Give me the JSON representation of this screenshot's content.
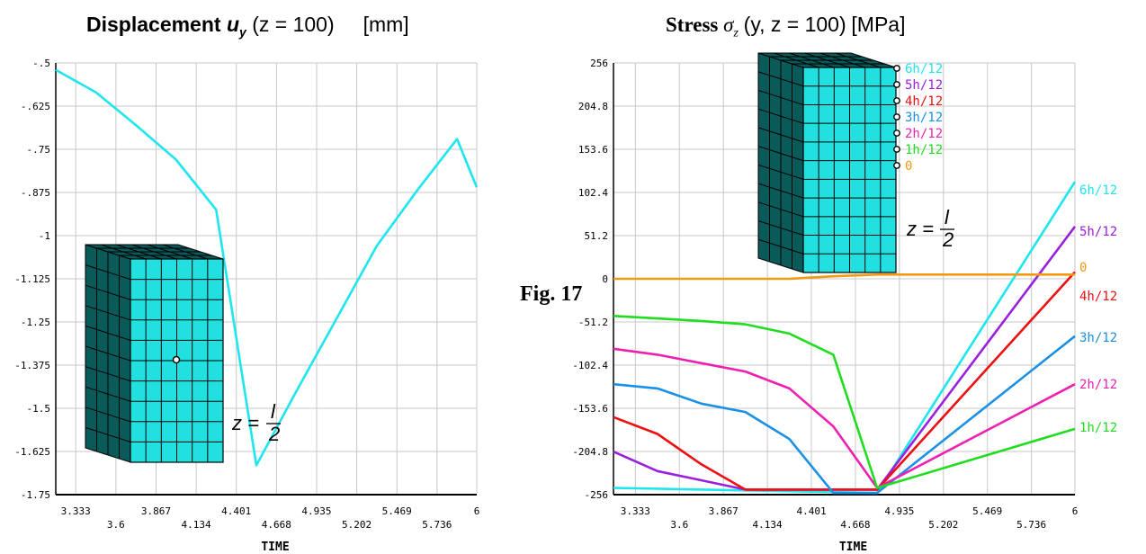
{
  "titles": {
    "left_main": "Displacement",
    "left_var": "u",
    "left_sub": "y",
    "left_rest": "(z = 100)",
    "left_unit": "[mm]",
    "right_main": "Stress",
    "right_var": "σ",
    "right_sub": "z",
    "right_rest": "(y, z = 100)",
    "right_unit": "[MPa]"
  },
  "figure_label": "Fig. 17",
  "insets": {
    "z_lhs": "z =",
    "z_num": "l",
    "z_den": "2"
  },
  "chart_data": [
    {
      "type": "line",
      "xlabel": "TIME",
      "ylabel": "",
      "xlim": [
        3.2,
        6.0
      ],
      "ylim": [
        -1.75,
        -0.5
      ],
      "x_ticks": [
        "3.333",
        "3.6",
        "3.867",
        "4.134",
        "4.401",
        "4.668",
        "4.935",
        "5.202",
        "5.469",
        "5.736",
        "6"
      ],
      "y_ticks": [
        "-.5",
        "-.625",
        "-.75",
        "-.875",
        "-1",
        "-1.125",
        "-1.25",
        "-1.375",
        "-1.5",
        "-1.625",
        "-1.75"
      ],
      "grid": true,
      "series": [
        {
          "color": "#1ee6ee",
          "x": [
            3.2,
            3.467,
            3.733,
            4.0,
            4.267,
            4.534,
            4.801,
            5.068,
            5.335,
            5.602,
            5.869,
            6.0
          ],
          "y": [
            -0.52,
            -0.585,
            -0.68,
            -0.78,
            -0.925,
            -1.665,
            -1.45,
            -1.24,
            -1.03,
            -0.87,
            -0.72,
            -0.86
          ]
        }
      ]
    },
    {
      "type": "line",
      "xlabel": "TIME",
      "ylabel": "",
      "xlim": [
        3.2,
        6.0
      ],
      "ylim": [
        -256,
        256
      ],
      "x_ticks": [
        "3.333",
        "3.6",
        "3.867",
        "4.134",
        "4.401",
        "4.668",
        "4.935",
        "5.202",
        "5.469",
        "5.736",
        "6"
      ],
      "y_ticks": [
        "256",
        "204.8",
        "153.6",
        "102.4",
        "51.2",
        "0",
        "-51.2",
        "-102.4",
        "-153.6",
        "-204.8",
        "-256"
      ],
      "grid": true,
      "legend_inset": [
        "6h/12",
        "5h/12",
        "4h/12",
        "3h/12",
        "2h/12",
        "1h/12",
        "0"
      ],
      "series": [
        {
          "name": "6h/12",
          "color": "#1ee6ee",
          "x": [
            3.2,
            4.8,
            6.0
          ],
          "y": [
            -248,
            -254,
            115
          ]
        },
        {
          "name": "5h/12",
          "color": "#9a20e0",
          "x": [
            3.2,
            3.467,
            4.0,
            4.8,
            6.0
          ],
          "y": [
            -205,
            -228,
            -250,
            -250,
            62
          ]
        },
        {
          "name": "4h/12",
          "color": "#ee1010",
          "x": [
            3.2,
            3.467,
            3.733,
            4.0,
            4.8,
            6.0
          ],
          "y": [
            -164,
            -184,
            -220,
            -250,
            -250,
            8
          ]
        },
        {
          "name": "3h/12",
          "color": "#1a90e6",
          "x": [
            3.2,
            3.467,
            3.733,
            4.0,
            4.267,
            4.534,
            4.8,
            6.0
          ],
          "y": [
            -125,
            -130,
            -148,
            -158,
            -190,
            -254,
            -254,
            -68
          ]
        },
        {
          "name": "2h/12",
          "color": "#ee20b0",
          "x": [
            3.2,
            3.467,
            3.733,
            4.0,
            4.267,
            4.534,
            4.8,
            6.0
          ],
          "y": [
            -83,
            -90,
            -100,
            -110,
            -130,
            -175,
            -248,
            -125
          ]
        },
        {
          "name": "1h/12",
          "color": "#20dd20",
          "x": [
            3.2,
            3.467,
            3.733,
            4.0,
            4.267,
            4.534,
            4.8,
            6.0
          ],
          "y": [
            -44,
            -47,
            -50,
            -54,
            -65,
            -90,
            -248,
            -178
          ]
        },
        {
          "name": "0",
          "color": "#f49a10",
          "x": [
            3.2,
            4.267,
            4.534,
            4.8,
            6.0
          ],
          "y": [
            0,
            0,
            3,
            5,
            5
          ]
        }
      ]
    }
  ]
}
